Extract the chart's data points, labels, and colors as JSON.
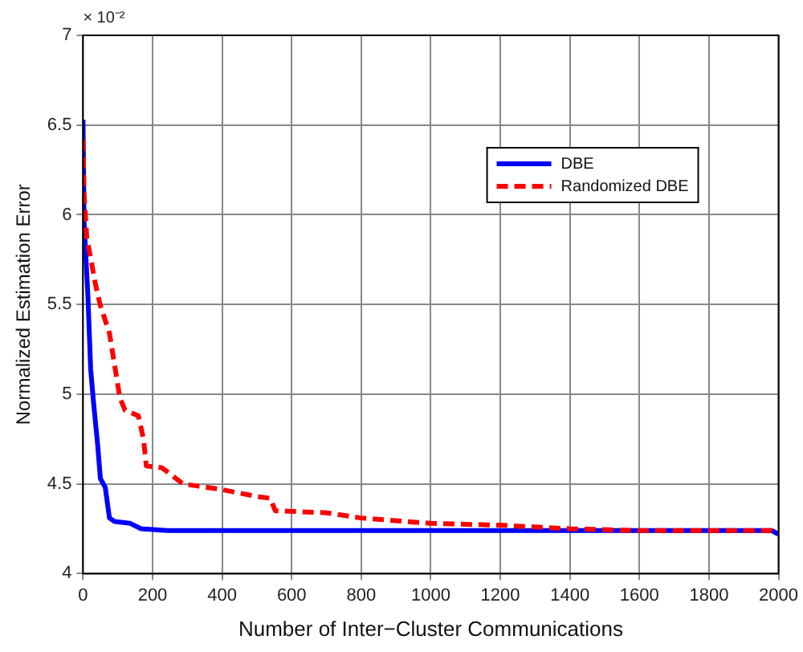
{
  "chart_data": {
    "type": "line",
    "xlabel": "Number of Inter−Cluster Communications",
    "ylabel": "Normalized Estimation Error",
    "annotations": [
      "× 10⁻²"
    ],
    "xlim": [
      0,
      2000
    ],
    "xticks": [
      0,
      200,
      400,
      600,
      800,
      1000,
      1200,
      1400,
      1600,
      1800,
      2000
    ],
    "ylim": [
      4,
      7
    ],
    "yticks": [
      4,
      4.5,
      5,
      5.5,
      6,
      6.5,
      7
    ],
    "grid": true,
    "legend": "top right",
    "marker": "none",
    "series": [
      {
        "name": "DBE",
        "color": "#0000ff",
        "line_style": "solid",
        "x": [
          0,
          3,
          14,
          22,
          30,
          42,
          50,
          64,
          76,
          91,
          136,
          167,
          243,
          600,
          1000,
          1400,
          1800,
          1980,
          2000
        ],
        "values": [
          6.53,
          5.96,
          5.55,
          5.14,
          4.96,
          4.72,
          4.53,
          4.48,
          4.31,
          4.29,
          4.28,
          4.25,
          4.24,
          4.24,
          4.24,
          4.24,
          4.24,
          4.24,
          4.22
        ]
      },
      {
        "name": "Randomized DBE",
        "color": "#ff0000",
        "line_style": "dashed",
        "x": [
          0,
          3,
          11,
          23,
          34,
          49,
          76,
          91,
          106,
          121,
          159,
          174,
          182,
          227,
          288,
          394,
          500,
          538,
          553,
          697,
          800,
          1000,
          1200,
          1400,
          1600,
          1800,
          1980,
          2000
        ],
        "values": [
          6.42,
          6.11,
          5.87,
          5.75,
          5.63,
          5.5,
          5.34,
          5.16,
          4.98,
          4.91,
          4.88,
          4.75,
          4.6,
          4.59,
          4.5,
          4.47,
          4.43,
          4.42,
          4.35,
          4.34,
          4.31,
          4.28,
          4.27,
          4.25,
          4.24,
          4.24,
          4.24,
          4.23
        ]
      }
    ]
  }
}
